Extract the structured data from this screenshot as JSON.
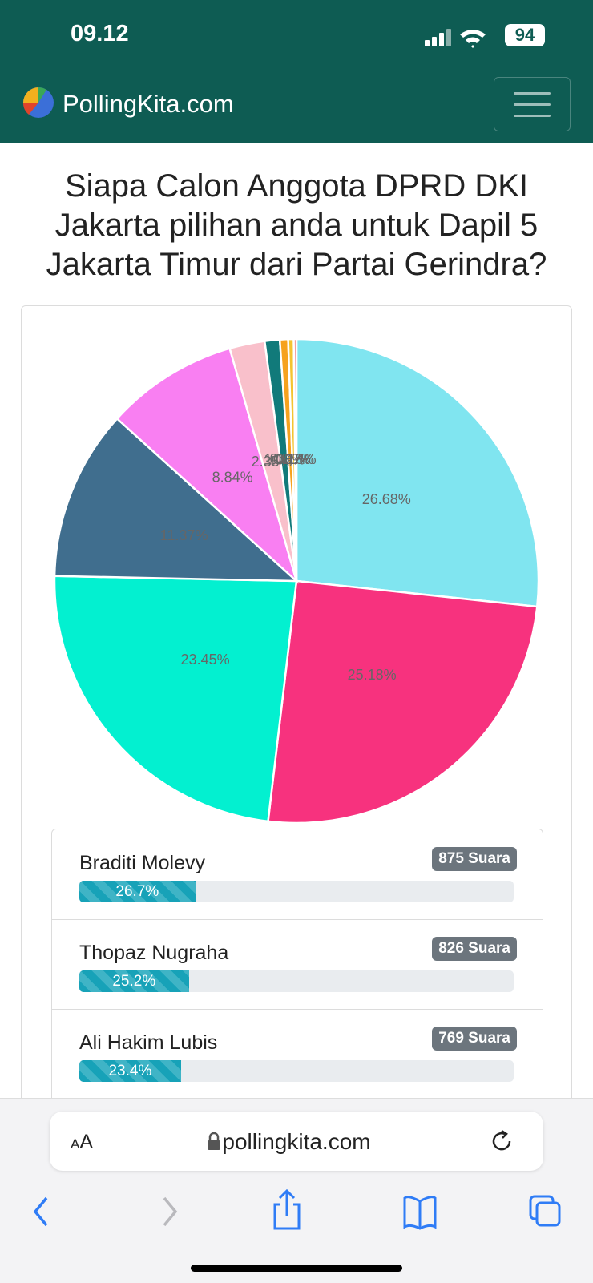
{
  "status_bar": {
    "time": "09.12",
    "battery": "94"
  },
  "header": {
    "site_name": "PollingKita.com"
  },
  "question": "Siapa Calon Anggota DPRD DKI Jakarta pilihan anda untuk Dapil 5 Jakarta Timur dari Partai Gerindra?",
  "chart_data": {
    "type": "pie",
    "values": [
      26.68,
      25.18,
      23.45,
      11.37,
      8.84,
      2.35,
      1.0,
      0.55,
      0.37,
      0.18
    ],
    "value_labels": [
      "26.68%",
      "25.18%",
      "23.45%",
      "11.37%",
      "8.84%",
      "2.35%",
      "1.00%",
      "0.55%",
      "0.37%",
      "0.18%"
    ],
    "colors": [
      "#80e5f0",
      "#f7327e",
      "#03f0d0",
      "#406e8e",
      "#f97ff2",
      "#f9c0cb",
      "#117a7a",
      "#f6a21e",
      "#f4c430",
      "#f08080"
    ]
  },
  "results": [
    {
      "name": "Braditi Molevy",
      "votes": "875 Suara",
      "percent": 26.7,
      "percent_label": "26.7%"
    },
    {
      "name": "Thopaz Nugraha",
      "votes": "826 Suara",
      "percent": 25.2,
      "percent_label": "25.2%"
    },
    {
      "name": "Ali Hakim Lubis",
      "votes": "769 Suara",
      "percent": 23.4,
      "percent_label": "23.4%"
    }
  ],
  "browser": {
    "text_size": "AA",
    "url": "pollingkita.com"
  }
}
